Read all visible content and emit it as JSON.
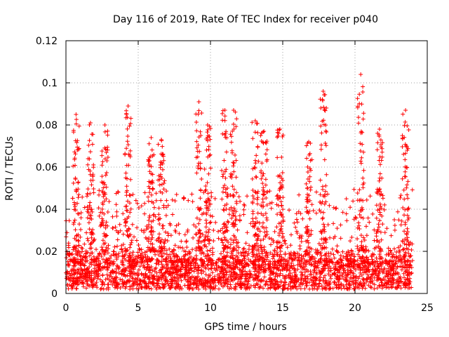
{
  "chart_data": {
    "type": "scatter",
    "title": "Day 116 of 2019, Rate Of TEC Index for receiver p040",
    "xlabel": "GPS time / hours",
    "ylabel": "ROTI / TECUs",
    "xlim": [
      0,
      25
    ],
    "ylim": [
      0,
      0.12
    ],
    "xticks": [
      0,
      5,
      10,
      15,
      20,
      25
    ],
    "xtick_labels": [
      "0",
      "5",
      "10",
      "15",
      "20",
      "25"
    ],
    "yticks": [
      0,
      0.02,
      0.04,
      0.06,
      0.08,
      0.1,
      0.12
    ],
    "ytick_labels": [
      "0",
      "0.02",
      "0.04",
      "0.06",
      "0.08",
      "0.1",
      "0.12"
    ],
    "grid": true,
    "marker": "+",
    "color": "#ff0000",
    "series": [
      {
        "name": "ROTI",
        "peaks": [
          {
            "x": 0.7,
            "y": 0.085
          },
          {
            "x": 1.7,
            "y": 0.081
          },
          {
            "x": 2.7,
            "y": 0.08
          },
          {
            "x": 4.3,
            "y": 0.089
          },
          {
            "x": 5.9,
            "y": 0.074
          },
          {
            "x": 6.6,
            "y": 0.073
          },
          {
            "x": 9.2,
            "y": 0.091
          },
          {
            "x": 9.8,
            "y": 0.08
          },
          {
            "x": 11.0,
            "y": 0.087
          },
          {
            "x": 11.6,
            "y": 0.087
          },
          {
            "x": 13.1,
            "y": 0.082
          },
          {
            "x": 13.7,
            "y": 0.077
          },
          {
            "x": 14.8,
            "y": 0.078
          },
          {
            "x": 16.8,
            "y": 0.072
          },
          {
            "x": 17.8,
            "y": 0.096
          },
          {
            "x": 20.4,
            "y": 0.104
          },
          {
            "x": 21.7,
            "y": 0.078
          },
          {
            "x": 23.5,
            "y": 0.087
          }
        ],
        "baseline_range": [
          0.002,
          0.022
        ]
      }
    ]
  }
}
